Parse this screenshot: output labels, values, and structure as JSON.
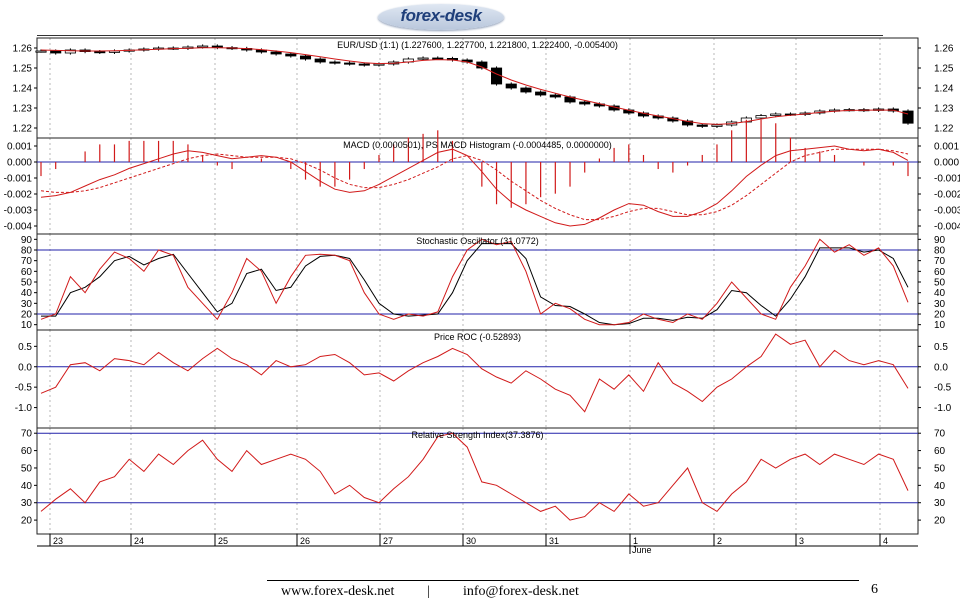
{
  "header": {
    "logo_text": "forex-desk",
    "brand_color": "#1f3f7a"
  },
  "footer": {
    "website": "www.forex-desk.net",
    "separator": "|",
    "email": "info@forex-desk.net",
    "page": "6"
  },
  "colors": {
    "price": "#000000",
    "overlay": "#d11a1a",
    "level": "#2222aa",
    "grid": "#9a9a9a"
  },
  "chart_data": [
    {
      "type": "candlestick",
      "title": "EUR/USD (1:1) (1.227600, 1.227700, 1.221800, 1.222400, -0.005400)",
      "ylim": [
        1.215,
        1.265
      ],
      "yticks": [
        "1.26",
        "1.25",
        "1.24",
        "1.23",
        "1.22"
      ],
      "close_values": [
        1.2585,
        1.2575,
        1.259,
        1.2582,
        1.2578,
        1.2585,
        1.259,
        1.2595,
        1.26,
        1.2598,
        1.2605,
        1.261,
        1.2602,
        1.2598,
        1.259,
        1.258,
        1.257,
        1.256,
        1.2545,
        1.253,
        1.2525,
        1.252,
        1.2515,
        1.252,
        1.253,
        1.2545,
        1.255,
        1.2548,
        1.254,
        1.253,
        1.25,
        1.242,
        1.24,
        1.238,
        1.2365,
        1.2355,
        1.233,
        1.232,
        1.231,
        1.229,
        1.2275,
        1.226,
        1.225,
        1.2235,
        1.2215,
        1.2208,
        1.2215,
        1.223,
        1.225,
        1.2262,
        1.227,
        1.2268,
        1.2275,
        1.2285,
        1.229,
        1.2292,
        1.2288,
        1.2295,
        1.2285,
        1.2224
      ],
      "ma_values": [
        1.259,
        1.2588,
        1.2586,
        1.2585,
        1.2585,
        1.2586,
        1.2588,
        1.2591,
        1.2594,
        1.2597,
        1.2599,
        1.2601,
        1.2601,
        1.26,
        1.2597,
        1.2592,
        1.2585,
        1.2577,
        1.2567,
        1.2556,
        1.2545,
        1.2535,
        1.2526,
        1.2522,
        1.2524,
        1.253,
        1.2538,
        1.2542,
        1.254,
        1.253,
        1.2505,
        1.247,
        1.244,
        1.2415,
        1.2393,
        1.2374,
        1.2355,
        1.2338,
        1.2322,
        1.2305,
        1.2289,
        1.2274,
        1.226,
        1.2247,
        1.2233,
        1.2222,
        1.2218,
        1.2222,
        1.2232,
        1.2245,
        1.2256,
        1.2264,
        1.227,
        1.2278,
        1.2284,
        1.2288,
        1.2289,
        1.229,
        1.2289,
        1.227
      ]
    },
    {
      "type": "line",
      "title": "MACD (0.0000501), PS MACD Histogram (-0.0004485, 0.0000000)",
      "ylim": [
        -0.0045,
        0.0015
      ],
      "yticks": [
        "0.001",
        "0.000",
        "-0.001",
        "-0.002",
        "-0.003",
        "-0.004"
      ],
      "macd": [
        -0.0022,
        -0.0021,
        -0.0019,
        -0.0015,
        -0.0011,
        -0.0008,
        -0.0004,
        -0.0001,
        0.0002,
        0.0005,
        0.0007,
        0.0006,
        0.0004,
        0.0002,
        0.0003,
        0.0004,
        0.0003,
        0.0,
        -0.0006,
        -0.0012,
        -0.0017,
        -0.0019,
        -0.0018,
        -0.0014,
        -0.0009,
        -0.0004,
        0.0001,
        0.0006,
        0.0008,
        0.0004,
        -0.0006,
        -0.0017,
        -0.0025,
        -0.003,
        -0.0034,
        -0.0038,
        -0.004,
        -0.0039,
        -0.0035,
        -0.003,
        -0.0026,
        -0.0027,
        -0.0031,
        -0.0034,
        -0.0034,
        -0.0031,
        -0.0026,
        -0.0018,
        -0.0009,
        -0.0002,
        0.0004,
        0.0007,
        0.0008,
        0.0009,
        0.001,
        0.0008,
        0.0007,
        0.0008,
        0.0006,
        0.0001
      ],
      "signal": [
        -0.0018,
        -0.0019,
        -0.0019,
        -0.0018,
        -0.0016,
        -0.0013,
        -0.001,
        -0.0007,
        -0.0004,
        -0.0001,
        0.0002,
        0.0004,
        0.0005,
        0.0004,
        0.0003,
        0.0003,
        0.0003,
        0.0002,
        -0.0001,
        -0.0005,
        -0.001,
        -0.0014,
        -0.0016,
        -0.0016,
        -0.0014,
        -0.0011,
        -0.0007,
        -0.0003,
        0.0002,
        0.0004,
        0.0001,
        -0.0005,
        -0.0012,
        -0.0018,
        -0.0024,
        -0.0029,
        -0.0033,
        -0.0036,
        -0.0036,
        -0.0034,
        -0.0031,
        -0.0029,
        -0.0029,
        -0.0031,
        -0.0033,
        -0.0033,
        -0.0031,
        -0.0027,
        -0.0021,
        -0.0014,
        -0.0007,
        0.0,
        0.0004,
        0.0006,
        0.0008,
        0.0008,
        0.0008,
        0.0008,
        0.0007,
        0.0005
      ],
      "zero_line": 0
    },
    {
      "type": "line",
      "title": "Stochastic Oscillator (31.0772)",
      "ylim": [
        5,
        95
      ],
      "yticks": [
        "90",
        "80",
        "70",
        "60",
        "50",
        "40",
        "30",
        "20",
        "10"
      ],
      "levels": [
        80,
        20
      ],
      "k": [
        15,
        20,
        55,
        40,
        62,
        78,
        72,
        60,
        80,
        75,
        45,
        30,
        15,
        40,
        72,
        60,
        30,
        55,
        75,
        76,
        75,
        70,
        40,
        20,
        15,
        20,
        18,
        22,
        55,
        80,
        90,
        85,
        88,
        60,
        20,
        30,
        25,
        15,
        10,
        10,
        12,
        20,
        15,
        12,
        20,
        15,
        30,
        50,
        35,
        20,
        15,
        45,
        65,
        90,
        78,
        85,
        75,
        82,
        65,
        31
      ],
      "d": [
        18,
        18,
        40,
        45,
        55,
        70,
        74,
        66,
        72,
        76,
        58,
        40,
        22,
        30,
        58,
        62,
        42,
        45,
        65,
        74,
        75,
        72,
        52,
        30,
        20,
        18,
        19,
        20,
        40,
        70,
        86,
        86,
        86,
        72,
        36,
        28,
        27,
        20,
        12,
        10,
        11,
        16,
        16,
        14,
        17,
        16,
        24,
        42,
        40,
        28,
        18,
        34,
        55,
        82,
        82,
        82,
        78,
        80,
        72,
        45
      ]
    },
    {
      "type": "line",
      "title": "Price ROC (-0.52893)",
      "ylim": [
        -1.5,
        0.9
      ],
      "yticks": [
        "0.5",
        "0.0",
        "-0.5",
        "-1.0"
      ],
      "zero_line": 0,
      "values": [
        -0.65,
        -0.5,
        0.05,
        0.1,
        -0.1,
        0.2,
        0.15,
        0.05,
        0.35,
        0.1,
        -0.1,
        0.2,
        0.45,
        0.2,
        0.05,
        -0.2,
        0.15,
        0.0,
        0.05,
        0.25,
        0.3,
        0.1,
        -0.2,
        -0.15,
        -0.35,
        -0.1,
        0.1,
        0.25,
        0.45,
        0.3,
        -0.05,
        -0.25,
        -0.4,
        -0.1,
        -0.3,
        -0.55,
        -0.7,
        -1.1,
        -0.3,
        -0.55,
        -0.2,
        -0.6,
        0.1,
        -0.4,
        -0.6,
        -0.85,
        -0.5,
        -0.3,
        0.0,
        0.25,
        0.8,
        0.55,
        0.65,
        0.0,
        0.4,
        0.15,
        0.05,
        0.15,
        0.05,
        -0.53
      ]
    },
    {
      "type": "line",
      "title": "Relative Strength Index(37.3876)",
      "ylim": [
        12,
        73
      ],
      "yticks": [
        "70",
        "60",
        "50",
        "40",
        "30",
        "20"
      ],
      "levels": [
        70,
        30
      ],
      "values": [
        25,
        32,
        38,
        30,
        42,
        45,
        55,
        48,
        58,
        52,
        60,
        66,
        55,
        48,
        60,
        52,
        55,
        58,
        55,
        48,
        35,
        40,
        33,
        30,
        38,
        45,
        55,
        68,
        70,
        62,
        42,
        40,
        35,
        30,
        25,
        28,
        20,
        22,
        30,
        25,
        35,
        28,
        30,
        40,
        50,
        30,
        25,
        35,
        42,
        55,
        50,
        55,
        58,
        52,
        58,
        55,
        52,
        58,
        55,
        37
      ]
    }
  ],
  "x_axis": {
    "labels": [
      "23",
      "24",
      "25",
      "26",
      "27",
      "30",
      "31",
      "1",
      "2",
      "3",
      "4"
    ],
    "month_label": "June"
  }
}
